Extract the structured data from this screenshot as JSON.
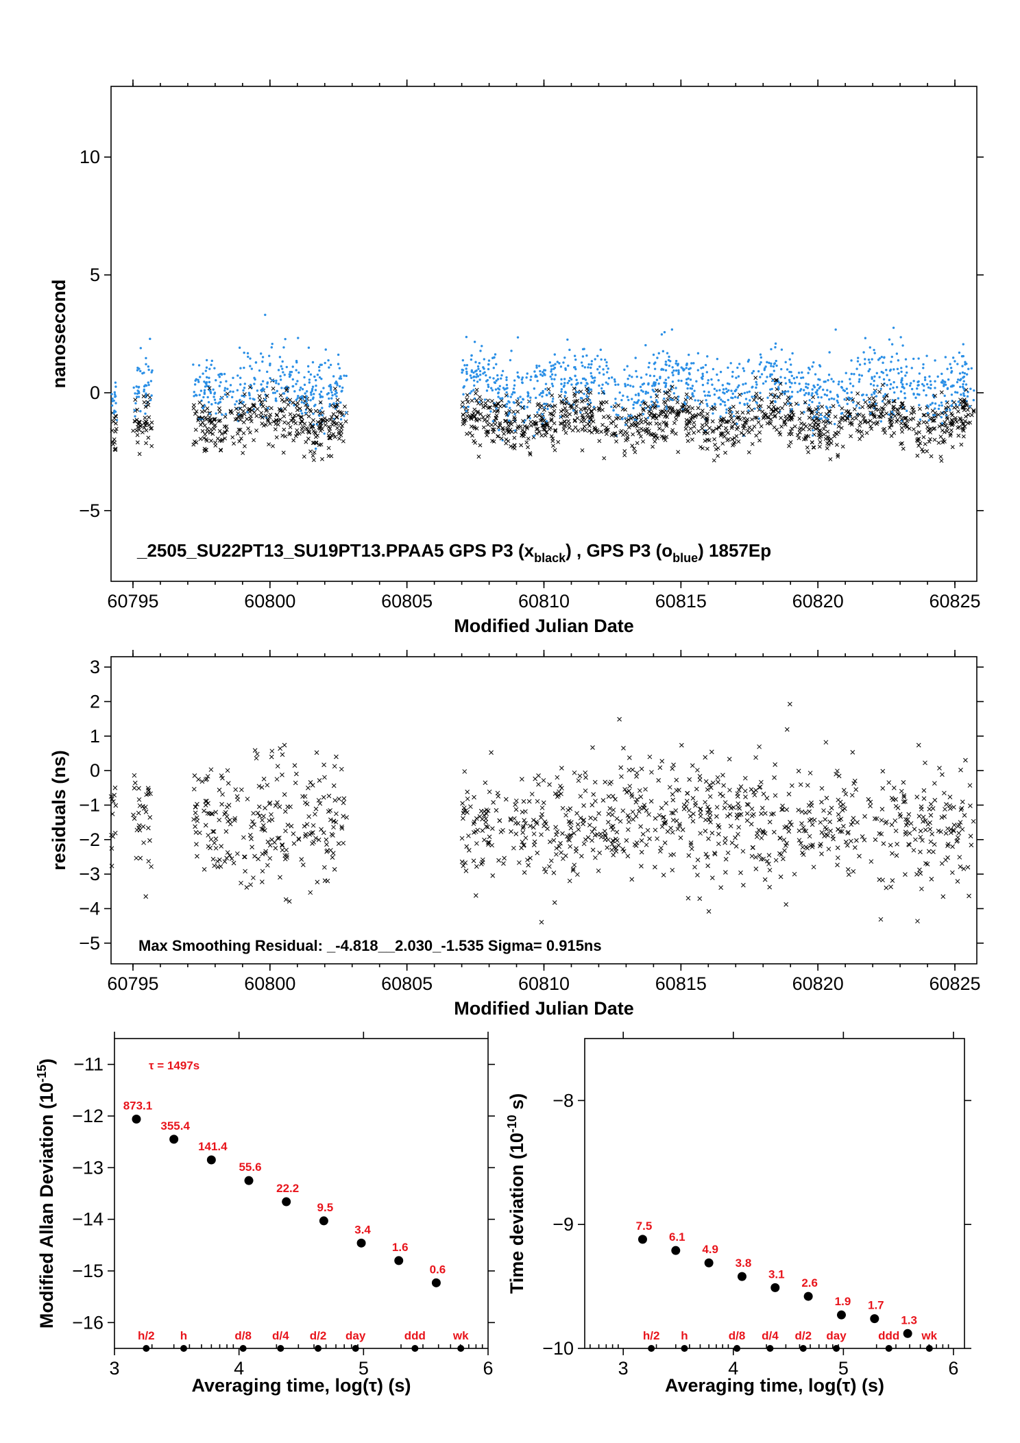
{
  "colors": {
    "black_series": "#000000",
    "blue_series": "#2a8fe6",
    "labels": "#e8141b"
  },
  "chart_data": [
    {
      "type": "scatter",
      "ylabel": "nanosecond",
      "xlabel": "Modified Julian Date",
      "xlim": [
        60794.2,
        60825.8
      ],
      "ylim": [
        -8,
        13
      ],
      "xticks": [
        60795,
        60800,
        60805,
        60810,
        60815,
        60820,
        60825
      ],
      "yticks": [
        -5,
        0,
        5,
        10
      ],
      "annotation": {
        "text": "_2505_SU22PT13_SU19PT13.PPAA5     GPS P3 (x",
        "sub1": "black",
        "mid": ") ,  GPS P3 (o",
        "sub2": "blue",
        "tail": ")  1857Ep"
      },
      "data_segments": [
        [
          60794.2,
          60794.4
        ],
        [
          60795.0,
          60795.7
        ],
        [
          60797.2,
          60802.8
        ],
        [
          60807.0,
          60825.7
        ]
      ],
      "series": [
        {
          "mean": -1.2,
          "spread": 0.55
        },
        {
          "mean": 0.3,
          "spread": 0.7
        }
      ]
    },
    {
      "type": "scatter",
      "ylabel": "residuals (ns)",
      "xlabel": "Modified Julian Date",
      "xlim": [
        60794.2,
        60825.8
      ],
      "ylim": [
        -5.6,
        3.3
      ],
      "xticks": [
        60795,
        60800,
        60805,
        60810,
        60815,
        60820,
        60825
      ],
      "yticks": [
        -5,
        -4,
        -3,
        -2,
        -1,
        0,
        1,
        2,
        3
      ],
      "annotation": "Max Smoothing Residual: _-4.818__2.030_-1.535  Sigma= 0.915ns",
      "min": -4.818,
      "max": 2.03,
      "mean": -1.535,
      "sigma": 0.915
    },
    {
      "type": "scatter",
      "ylabel": "Modified Allan Deviation (10",
      "ylabel_sup": "-15",
      "ylabel_tail": ")",
      "xlabel": "Averaging time, log(τ) (s)",
      "xlim": [
        3,
        6
      ],
      "ylim": [
        -16.5,
        -10.5
      ],
      "xticks": [
        3,
        4,
        5,
        6
      ],
      "yticks": [
        -16,
        -15,
        -14,
        -13,
        -12,
        -11
      ],
      "tau_note": "τ = 1497s",
      "x": [
        3.176,
        3.477,
        3.778,
        4.079,
        4.38,
        4.681,
        4.982,
        5.283,
        5.584
      ],
      "y": [
        -12.06,
        -12.45,
        -12.85,
        -13.25,
        -13.66,
        -14.03,
        -14.46,
        -14.8,
        -15.23
      ],
      "labels": [
        "873.1",
        "355.4",
        "141.4",
        "55.6",
        "22.2",
        "9.5",
        "3.4",
        "1.6",
        "0.6"
      ],
      "markers": {
        "x": [
          3.255,
          3.556,
          4.033,
          4.334,
          4.635,
          4.936,
          5.413,
          5.781
        ],
        "labels": [
          "h/2",
          "h",
          "d/8",
          "d/4",
          "d/2",
          "day",
          "ddd",
          "wk"
        ]
      }
    },
    {
      "type": "scatter",
      "ylabel": "Time deviation (10",
      "ylabel_sup": "-10",
      "ylabel_tail": " s)",
      "xlabel": "Averaging time, log(τ) (s)",
      "xlim": [
        2.65,
        6.1
      ],
      "ylim": [
        -10,
        -7.5
      ],
      "xticks": [
        3,
        4,
        5,
        6
      ],
      "yticks": [
        -10,
        -9,
        -8
      ],
      "x": [
        3.176,
        3.477,
        3.778,
        4.079,
        4.38,
        4.681,
        4.982,
        5.283,
        5.584
      ],
      "y": [
        -9.12,
        -9.21,
        -9.31,
        -9.42,
        -9.51,
        -9.58,
        -9.73,
        -9.76,
        -9.88
      ],
      "labels": [
        "7.5",
        "6.1",
        "4.9",
        "3.8",
        "3.1",
        "2.6",
        "1.9",
        "1.7",
        "1.3"
      ],
      "markers": {
        "x": [
          3.255,
          3.556,
          4.033,
          4.334,
          4.635,
          4.936,
          5.413,
          5.781
        ],
        "labels": [
          "h/2",
          "h",
          "d/8",
          "d/4",
          "d/2",
          "day",
          "ddd",
          "wk"
        ]
      }
    }
  ]
}
